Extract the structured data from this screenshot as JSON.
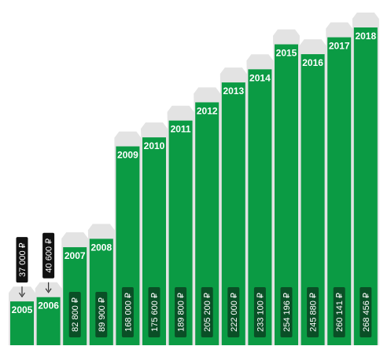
{
  "chart_data": {
    "type": "bar",
    "categories": [
      "2005",
      "2006",
      "2007",
      "2008",
      "2009",
      "2010",
      "2011",
      "2012",
      "2013",
      "2014",
      "2015",
      "2016",
      "2017",
      "2018"
    ],
    "values": [
      37000,
      40600,
      82800,
      89900,
      168000,
      175600,
      189800,
      205200,
      222000,
      233100,
      254196,
      245880,
      260141,
      268456
    ],
    "value_labels": [
      "37 000 ₽",
      "40 600 ₽",
      "82 800 ₽",
      "89 900 ₽",
      "168 000 ₽",
      "175 600 ₽",
      "189 800 ₽",
      "205 200 ₽",
      "222 000 ₽",
      "233 100 ₽",
      "254 196 ₽",
      "245 880 ₽",
      "260 141 ₽",
      "268 456 ₽"
    ],
    "title": "",
    "xlabel": "",
    "ylabel": "",
    "ylim": [
      0,
      268456
    ],
    "grid": false,
    "legend": "none",
    "colors": {
      "bar": "#0b9b44",
      "shadow": "#e3e3e3",
      "label_box": "#0a4f26",
      "callout_box": "#111111",
      "text": "#ffffff"
    }
  }
}
